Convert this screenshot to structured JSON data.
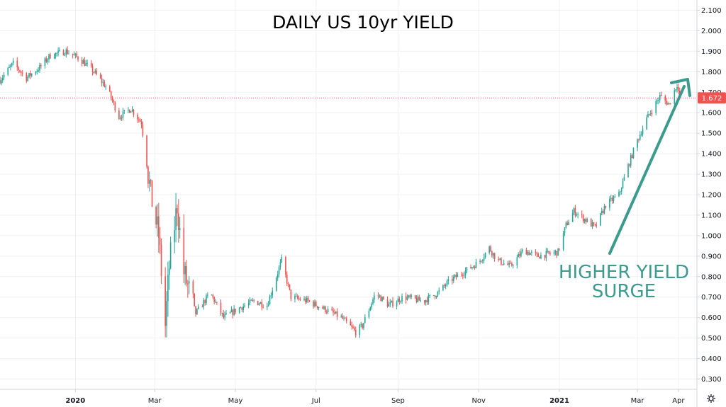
{
  "colors": {
    "up": "#26a69a",
    "down": "#ef5350",
    "annotation": "#3d9a8f",
    "last_price_bg": "#ef5350",
    "grid": "#eef0f3",
    "axis": "#d1d4dc"
  },
  "settings_icon": "gear-icon",
  "chart_data": {
    "type": "candlestick",
    "title": "DAILY US 10yr YIELD",
    "ylim": [
      0.25,
      2.15
    ],
    "y_ticks": [
      "0.300",
      "0.400",
      "0.500",
      "0.600",
      "0.700",
      "0.800",
      "0.900",
      "1.000",
      "1.100",
      "1.200",
      "1.300",
      "1.400",
      "1.500",
      "1.600",
      "1.700",
      "1.800",
      "1.900",
      "2.000",
      "2.100"
    ],
    "x_ticks": [
      {
        "label": "2020",
        "date": "2020-01-01",
        "bold": true
      },
      {
        "label": "Mar",
        "date": "2020-03-01",
        "bold": false
      },
      {
        "label": "May",
        "date": "2020-05-01",
        "bold": false
      },
      {
        "label": "Jul",
        "date": "2020-07-01",
        "bold": false
      },
      {
        "label": "Sep",
        "date": "2020-09-01",
        "bold": false
      },
      {
        "label": "Nov",
        "date": "2020-11-01",
        "bold": false
      },
      {
        "label": "2021",
        "date": "2021-01-01",
        "bold": true
      },
      {
        "label": "Mar",
        "date": "2021-03-01",
        "bold": false
      },
      {
        "label": "Apr",
        "date": "2021-04-01",
        "bold": false
      }
    ],
    "xlim": [
      "2019-11-05",
      "2021-04-15"
    ],
    "path": [
      [
        "2019-11-05",
        1.76
      ],
      [
        "2019-11-15",
        1.84
      ],
      [
        "2019-11-25",
        1.77
      ],
      [
        "2019-12-05",
        1.82
      ],
      [
        "2019-12-13",
        1.88
      ],
      [
        "2019-12-25",
        1.9
      ],
      [
        "2020-01-05",
        1.86
      ],
      [
        "2020-01-15",
        1.8
      ],
      [
        "2020-01-25",
        1.72
      ],
      [
        "2020-02-03",
        1.58
      ],
      [
        "2020-02-12",
        1.62
      ],
      [
        "2020-02-20",
        1.55
      ],
      [
        "2020-02-27",
        1.2
      ],
      [
        "2020-03-04",
        1.0
      ],
      [
        "2020-03-09",
        0.56
      ],
      [
        "2020-03-12",
        0.85
      ],
      [
        "2020-03-18",
        1.15
      ],
      [
        "2020-03-23",
        0.82
      ],
      [
        "2020-04-01",
        0.62
      ],
      [
        "2020-04-12",
        0.72
      ],
      [
        "2020-04-22",
        0.6
      ],
      [
        "2020-05-05",
        0.65
      ],
      [
        "2020-05-15",
        0.68
      ],
      [
        "2020-05-25",
        0.66
      ],
      [
        "2020-06-05",
        0.88
      ],
      [
        "2020-06-12",
        0.7
      ],
      [
        "2020-06-25",
        0.68
      ],
      [
        "2020-07-08",
        0.64
      ],
      [
        "2020-07-20",
        0.6
      ],
      [
        "2020-07-31",
        0.53
      ],
      [
        "2020-08-05",
        0.56
      ],
      [
        "2020-08-15",
        0.72
      ],
      [
        "2020-08-25",
        0.66
      ],
      [
        "2020-09-05",
        0.7
      ],
      [
        "2020-09-20",
        0.68
      ],
      [
        "2020-10-01",
        0.72
      ],
      [
        "2020-10-10",
        0.78
      ],
      [
        "2020-10-20",
        0.82
      ],
      [
        "2020-11-01",
        0.87
      ],
      [
        "2020-11-09",
        0.94
      ],
      [
        "2020-11-15",
        0.88
      ],
      [
        "2020-11-25",
        0.85
      ],
      [
        "2020-12-05",
        0.93
      ],
      [
        "2020-12-15",
        0.9
      ],
      [
        "2020-12-31",
        0.92
      ],
      [
        "2021-01-06",
        1.05
      ],
      [
        "2021-01-12",
        1.12
      ],
      [
        "2021-01-20",
        1.08
      ],
      [
        "2021-01-28",
        1.04
      ],
      [
        "2021-02-05",
        1.15
      ],
      [
        "2021-02-15",
        1.2
      ],
      [
        "2021-02-22",
        1.34
      ],
      [
        "2021-02-28",
        1.45
      ],
      [
        "2021-03-08",
        1.57
      ],
      [
        "2021-03-18",
        1.68
      ],
      [
        "2021-03-25",
        1.64
      ],
      [
        "2021-03-31",
        1.74
      ],
      [
        "2021-04-02",
        1.672
      ]
    ],
    "last_price": {
      "label": "1.672",
      "value": 1.672
    },
    "annotation": {
      "lines": [
        "HIGHER YIELD",
        "SURGE"
      ]
    }
  }
}
